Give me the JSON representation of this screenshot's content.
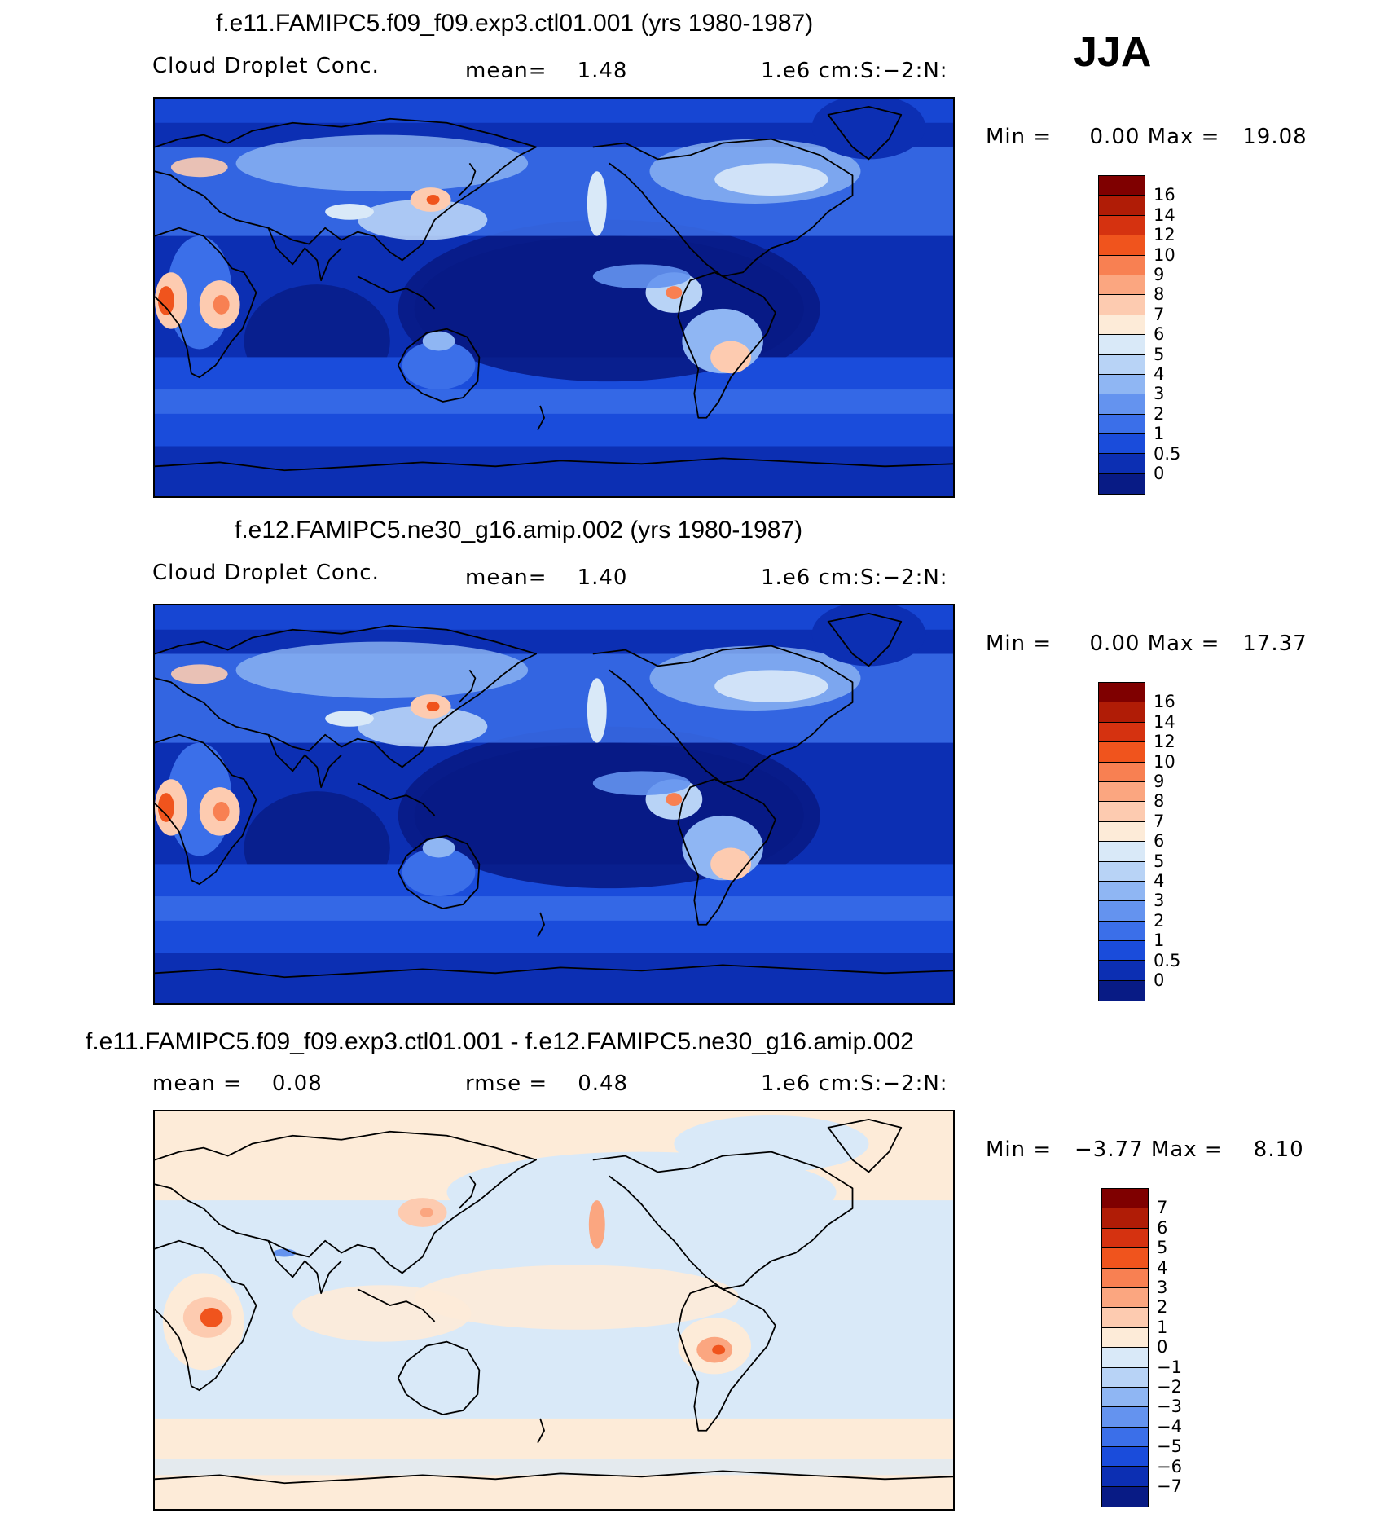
{
  "season": "JJA",
  "panels": [
    {
      "id": "p1",
      "title": "f.e11.FAMIPC5.f09_f09.exp3.ctl01.001 (yrs 1980-1987)",
      "field_label": "Cloud Droplet Conc.",
      "stats": [
        {
          "text": "mean=    1.48"
        }
      ],
      "units": "1.e6 cm:S:−2:N:",
      "minmax": "Min =     0.00 Max =   19.08",
      "colorbar": {
        "labels": [
          "16",
          "14",
          "12",
          "10",
          "9",
          "8",
          "7",
          "6",
          "5",
          "4",
          "3",
          "2",
          "1",
          "0.5",
          "0"
        ],
        "colors": [
          "#7f0000",
          "#b01c06",
          "#d53210",
          "#f0541d",
          "#f88052",
          "#fba680",
          "#fdcbb0",
          "#fdebd8",
          "#d9e9f8",
          "#b8d3f6",
          "#8fb6f3",
          "#6493ef",
          "#3b6fe9",
          "#1a4cdb",
          "#0c2fb3",
          "#081b85"
        ]
      },
      "map_style": "control"
    },
    {
      "id": "p2",
      "title": "f.e12.FAMIPC5.ne30_g16.amip.002 (yrs 1980-1987)",
      "field_label": "Cloud Droplet Conc.",
      "stats": [
        {
          "text": "mean=    1.40"
        }
      ],
      "units": "1.e6 cm:S:−2:N:",
      "minmax": "Min =     0.00 Max =   17.37",
      "colorbar": {
        "labels": [
          "16",
          "14",
          "12",
          "10",
          "9",
          "8",
          "7",
          "6",
          "5",
          "4",
          "3",
          "2",
          "1",
          "0.5",
          "0"
        ],
        "colors": [
          "#7f0000",
          "#b01c06",
          "#d53210",
          "#f0541d",
          "#f88052",
          "#fba680",
          "#fdcbb0",
          "#fdebd8",
          "#d9e9f8",
          "#b8d3f6",
          "#8fb6f3",
          "#6493ef",
          "#3b6fe9",
          "#1a4cdb",
          "#0c2fb3",
          "#081b85"
        ]
      },
      "map_style": "control"
    },
    {
      "id": "p3",
      "title": "f.e11.FAMIPC5.f09_f09.exp3.ctl01.001 - f.e12.FAMIPC5.ne30_g16.amip.002",
      "field_label": "",
      "stats": [
        {
          "text": "mean =    0.08"
        },
        {
          "text": "rmse =    0.48"
        }
      ],
      "units": "1.e6 cm:S:−2:N:",
      "minmax": "Min =   −3.77 Max =    8.10",
      "colorbar": {
        "labels": [
          "7",
          "6",
          "5",
          "4",
          "3",
          "2",
          "1",
          "0",
          "−1",
          "−2",
          "−3",
          "−4",
          "−5",
          "−6",
          "−7"
        ],
        "colors": [
          "#7f0000",
          "#b01c06",
          "#d53210",
          "#f0541d",
          "#f88052",
          "#fba680",
          "#fdcbb0",
          "#fdebd8",
          "#d9e9f8",
          "#b8d3f6",
          "#8fb6f3",
          "#6493ef",
          "#3b6fe9",
          "#1a4cdb",
          "#0c2fb3",
          "#081b85"
        ]
      },
      "map_style": "diff"
    }
  ]
}
